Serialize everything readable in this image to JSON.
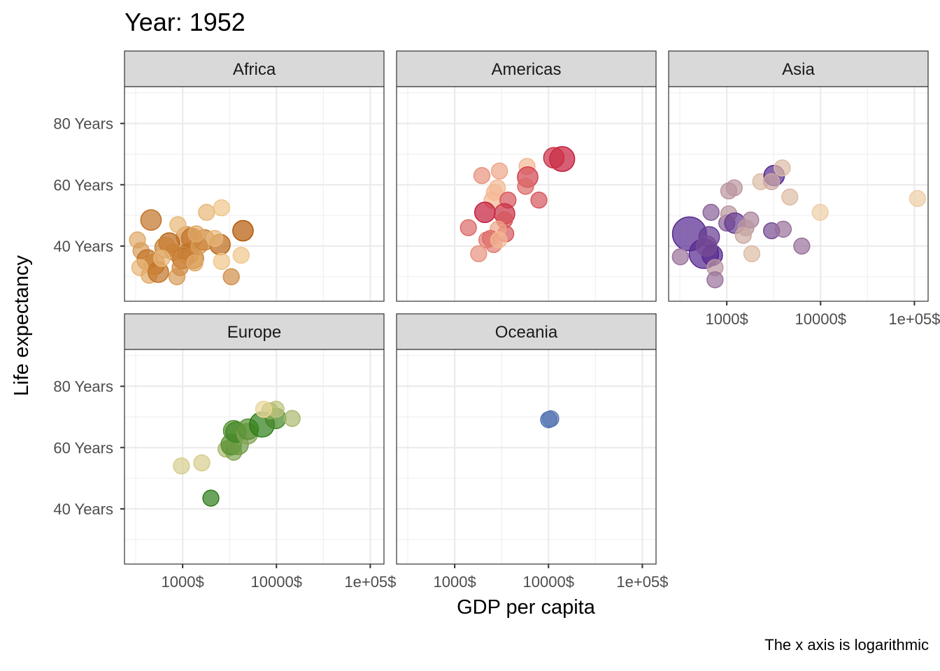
{
  "chart_data": {
    "type": "scatter",
    "title": "Year: 1952",
    "xlabel": "GDP per capita",
    "ylabel": "Life expectancy",
    "caption": "The x axis is logarithmic",
    "x_scale": "log10",
    "xlim": [
      240,
      140000
    ],
    "ylim": [
      22,
      92
    ],
    "x_ticks": [
      {
        "value": 1000,
        "label": "1000$"
      },
      {
        "value": 10000,
        "label": "10000$"
      },
      {
        "value": 100000,
        "label": "1e+05$"
      }
    ],
    "y_ticks": [
      {
        "value": 40,
        "label": "40 Years"
      },
      {
        "value": 60,
        "label": "60 Years"
      },
      {
        "value": 80,
        "label": "80 Years"
      }
    ],
    "grid": true,
    "legend": "none",
    "facets": [
      {
        "name": "Africa",
        "color": "#b35806",
        "points": [
          {
            "x": 1100,
            "y": 43.0,
            "s": 3,
            "shade": 0.6
          },
          {
            "x": 890,
            "y": 47.0,
            "s": 2,
            "shade": 0.3
          },
          {
            "x": 1250,
            "y": 42.5,
            "s": 3,
            "shade": 0.8
          },
          {
            "x": 2500,
            "y": 40.5,
            "s": 3,
            "shade": 0.9
          },
          {
            "x": 2600,
            "y": 52.5,
            "s": 2,
            "shade": 0.2
          },
          {
            "x": 1800,
            "y": 51.0,
            "s": 2,
            "shade": 0.3
          },
          {
            "x": 460,
            "y": 48.5,
            "s": 3,
            "shade": 0.8
          },
          {
            "x": 330,
            "y": 42.0,
            "s": 2,
            "shade": 0.4
          },
          {
            "x": 360,
            "y": 38.5,
            "s": 2,
            "shade": 0.5
          },
          {
            "x": 420,
            "y": 35.5,
            "s": 3,
            "shade": 0.8
          },
          {
            "x": 500,
            "y": 34.0,
            "s": 3,
            "shade": 0.7
          },
          {
            "x": 350,
            "y": 33.0,
            "s": 2,
            "shade": 0.3
          },
          {
            "x": 440,
            "y": 30.5,
            "s": 2,
            "shade": 0.4
          },
          {
            "x": 550,
            "y": 31.5,
            "s": 3,
            "shade": 0.8
          },
          {
            "x": 870,
            "y": 30.0,
            "s": 2,
            "shade": 0.5
          },
          {
            "x": 1000,
            "y": 36.0,
            "s": 3,
            "shade": 0.9
          },
          {
            "x": 1150,
            "y": 37.5,
            "s": 3,
            "shade": 0.8
          },
          {
            "x": 1300,
            "y": 36.0,
            "s": 3,
            "shade": 0.7
          },
          {
            "x": 1500,
            "y": 40.0,
            "s": 2,
            "shade": 0.5
          },
          {
            "x": 1700,
            "y": 42.0,
            "s": 3,
            "shade": 0.7
          },
          {
            "x": 2200,
            "y": 42.5,
            "s": 2,
            "shade": 0.3
          },
          {
            "x": 4400,
            "y": 45.0,
            "s": 3,
            "shade": 1.0
          },
          {
            "x": 3300,
            "y": 30.0,
            "s": 2,
            "shade": 0.6
          },
          {
            "x": 2600,
            "y": 35.0,
            "s": 2,
            "shade": 0.2
          },
          {
            "x": 4200,
            "y": 37.0,
            "s": 2,
            "shade": 0.2
          },
          {
            "x": 720,
            "y": 41.0,
            "s": 3,
            "shade": 0.9
          },
          {
            "x": 800,
            "y": 38.0,
            "s": 2,
            "shade": 0.7
          },
          {
            "x": 940,
            "y": 33.0,
            "s": 2,
            "shade": 0.6
          },
          {
            "x": 650,
            "y": 39.5,
            "s": 3,
            "shade": 0.7
          },
          {
            "x": 1400,
            "y": 44.0,
            "s": 2,
            "shade": 0.4
          },
          {
            "x": 600,
            "y": 36.0,
            "s": 2,
            "shade": 0.3
          },
          {
            "x": 1350,
            "y": 34.5,
            "s": 2,
            "shade": 0.4
          }
        ]
      },
      {
        "name": "Americas",
        "color": "#c51b3a",
        "points": [
          {
            "x": 13990,
            "y": 68.4,
            "s": 4,
            "shade": 1.0
          },
          {
            "x": 11400,
            "y": 68.8,
            "s": 3,
            "shade": 0.9
          },
          {
            "x": 5900,
            "y": 66.0,
            "s": 2,
            "shade": 0.2
          },
          {
            "x": 6000,
            "y": 62.5,
            "s": 3,
            "shade": 0.8
          },
          {
            "x": 5700,
            "y": 59.5,
            "s": 2,
            "shade": 0.6
          },
          {
            "x": 3000,
            "y": 64.5,
            "s": 2,
            "shade": 0.3
          },
          {
            "x": 1950,
            "y": 63.0,
            "s": 2,
            "shade": 0.4
          },
          {
            "x": 2850,
            "y": 59.0,
            "s": 2,
            "shade": 0.2
          },
          {
            "x": 2650,
            "y": 57.5,
            "s": 2,
            "shade": 0.2
          },
          {
            "x": 2500,
            "y": 55.0,
            "s": 2,
            "shade": 0.2
          },
          {
            "x": 3700,
            "y": 55.0,
            "s": 2,
            "shade": 0.7
          },
          {
            "x": 7900,
            "y": 55.0,
            "s": 2,
            "shade": 0.7
          },
          {
            "x": 2100,
            "y": 51.0,
            "s": 3,
            "shade": 1.0
          },
          {
            "x": 3400,
            "y": 50.5,
            "s": 3,
            "shade": 0.9
          },
          {
            "x": 3400,
            "y": 48.5,
            "s": 2,
            "shade": 0.7
          },
          {
            "x": 1400,
            "y": 46.0,
            "s": 2,
            "shade": 0.6
          },
          {
            "x": 3500,
            "y": 44.0,
            "s": 2,
            "shade": 0.7
          },
          {
            "x": 2900,
            "y": 45.5,
            "s": 2,
            "shade": 0.3
          },
          {
            "x": 2200,
            "y": 42.0,
            "s": 2,
            "shade": 0.5
          },
          {
            "x": 2400,
            "y": 42.5,
            "s": 2,
            "shade": 0.6
          },
          {
            "x": 2600,
            "y": 40.5,
            "s": 2,
            "shade": 0.5
          },
          {
            "x": 2950,
            "y": 42.0,
            "s": 2,
            "shade": 0.2
          },
          {
            "x": 1800,
            "y": 37.5,
            "s": 2,
            "shade": 0.4
          }
        ]
      },
      {
        "name": "Asia",
        "color": "#54278f",
        "points": [
          {
            "x": 400,
            "y": 44.0,
            "s": 6,
            "shade": 1.0
          },
          {
            "x": 570,
            "y": 37.5,
            "s": 5,
            "shade": 1.0
          },
          {
            "x": 650,
            "y": 43.0,
            "s": 3,
            "shade": 0.9
          },
          {
            "x": 700,
            "y": 37.0,
            "s": 3,
            "shade": 1.0
          },
          {
            "x": 610,
            "y": 40.0,
            "s": 3,
            "shade": 0.8
          },
          {
            "x": 320,
            "y": 36.5,
            "s": 2,
            "shade": 0.6
          },
          {
            "x": 750,
            "y": 33.0,
            "s": 2,
            "shade": 0.4
          },
          {
            "x": 750,
            "y": 29.0,
            "s": 2,
            "shade": 0.6
          },
          {
            "x": 680,
            "y": 51.0,
            "s": 2,
            "shade": 0.7
          },
          {
            "x": 1000,
            "y": 47.5,
            "s": 2,
            "shade": 0.7
          },
          {
            "x": 1050,
            "y": 50.5,
            "s": 2,
            "shade": 0.4
          },
          {
            "x": 1220,
            "y": 47.5,
            "s": 3,
            "shade": 0.9
          },
          {
            "x": 1800,
            "y": 48.5,
            "s": 2,
            "shade": 0.5
          },
          {
            "x": 1600,
            "y": 46.0,
            "s": 2,
            "shade": 0.4
          },
          {
            "x": 1500,
            "y": 43.5,
            "s": 2,
            "shade": 0.3
          },
          {
            "x": 1850,
            "y": 37.5,
            "s": 2,
            "shade": 0.2
          },
          {
            "x": 3000,
            "y": 45.0,
            "s": 2,
            "shade": 0.8
          },
          {
            "x": 4000,
            "y": 45.5,
            "s": 2,
            "shade": 0.6
          },
          {
            "x": 6300,
            "y": 40.0,
            "s": 2,
            "shade": 0.6
          },
          {
            "x": 1050,
            "y": 58.0,
            "s": 2,
            "shade": 0.4
          },
          {
            "x": 1200,
            "y": 59.0,
            "s": 2,
            "shade": 0.4
          },
          {
            "x": 2300,
            "y": 61.0,
            "s": 2,
            "shade": 0.2
          },
          {
            "x": 3200,
            "y": 63.0,
            "s": 3,
            "shade": 1.0
          },
          {
            "x": 3000,
            "y": 61.0,
            "s": 2,
            "shade": 0.3
          },
          {
            "x": 3900,
            "y": 65.5,
            "s": 2,
            "shade": 0.2
          },
          {
            "x": 4700,
            "y": 56.0,
            "s": 2,
            "shade": 0.2
          },
          {
            "x": 9900,
            "y": 51.0,
            "s": 2,
            "shade": 0.1
          },
          {
            "x": 108000,
            "y": 55.5,
            "s": 2,
            "shade": 0.1
          }
        ]
      },
      {
        "name": "Europe",
        "color": "#2e7d18",
        "points": [
          {
            "x": 2000,
            "y": 43.5,
            "s": 2,
            "shade": 1.0
          },
          {
            "x": 970,
            "y": 54.0,
            "s": 2,
            "shade": 0.2
          },
          {
            "x": 1600,
            "y": 55.0,
            "s": 2,
            "shade": 0.2
          },
          {
            "x": 2900,
            "y": 59.5,
            "s": 2,
            "shade": 0.4
          },
          {
            "x": 3200,
            "y": 60.0,
            "s": 2,
            "shade": 0.5
          },
          {
            "x": 3500,
            "y": 58.5,
            "s": 2,
            "shade": 0.6
          },
          {
            "x": 3300,
            "y": 61.0,
            "s": 3,
            "shade": 0.8
          },
          {
            "x": 3900,
            "y": 61.0,
            "s": 3,
            "shade": 0.7
          },
          {
            "x": 3500,
            "y": 65.5,
            "s": 3,
            "shade": 0.8
          },
          {
            "x": 3700,
            "y": 65.0,
            "s": 3,
            "shade": 0.9
          },
          {
            "x": 4900,
            "y": 64.5,
            "s": 3,
            "shade": 0.6
          },
          {
            "x": 5000,
            "y": 66.0,
            "s": 3,
            "shade": 0.8
          },
          {
            "x": 7000,
            "y": 67.5,
            "s": 4,
            "shade": 1.0
          },
          {
            "x": 9800,
            "y": 69.5,
            "s": 3,
            "shade": 0.9
          },
          {
            "x": 8500,
            "y": 72.0,
            "s": 2,
            "shade": 0.5
          },
          {
            "x": 9900,
            "y": 72.5,
            "s": 2,
            "shade": 0.3
          },
          {
            "x": 7300,
            "y": 72.5,
            "s": 2,
            "shade": 0.1
          },
          {
            "x": 14700,
            "y": 69.5,
            "s": 2,
            "shade": 0.4
          }
        ]
      },
      {
        "name": "Oceania",
        "color": "#4a6db5",
        "points": [
          {
            "x": 10040,
            "y": 69.1,
            "s": 2,
            "shade": 1.0
          },
          {
            "x": 10560,
            "y": 69.4,
            "s": 2,
            "shade": 0.9
          }
        ]
      }
    ]
  }
}
